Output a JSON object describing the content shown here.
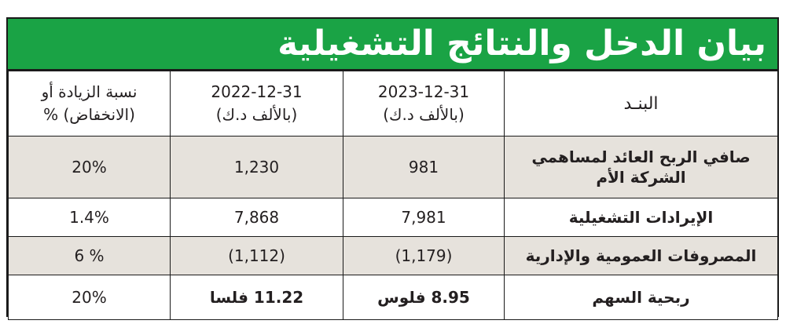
{
  "title": "بيان الدخل والنتائج التشغيلية",
  "columns": {
    "item": "البنـد",
    "year2023_date": "2023-12-31",
    "year2023_unit": "(بالألف د.ك)",
    "year2022_date": "2022-12-31",
    "year2022_unit": "(بالألف د.ك)",
    "change_line1": "نسبة الزيادة أو",
    "change_line2": "(الانخفاض) %"
  },
  "rows": [
    {
      "item": "صافي الربح العائد لمساهمي الشركة الأم",
      "y2023": "981",
      "y2022": "1,230",
      "change": "20%"
    },
    {
      "item": "الإيرادات التشغيلية",
      "y2023": "7,981",
      "y2022": "7,868",
      "change": "1.4%"
    },
    {
      "item": "المصروفات العمومية والإدارية",
      "y2023": "(1,179)",
      "y2022": "(1,112)",
      "change": "6 %"
    },
    {
      "item": "ربحية السهم",
      "y2023": "8.95 فلوس",
      "y2022": "11.22 فلسا",
      "change": "20%"
    }
  ],
  "colors": {
    "banner": "#1aa345",
    "shaded_row": "#e6e2dc",
    "border": "#1a1a1a"
  }
}
